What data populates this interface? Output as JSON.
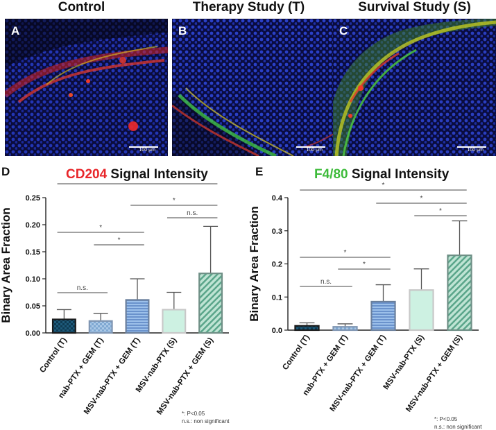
{
  "micrographs": [
    {
      "letter": "A",
      "title": "Control",
      "scale": "100 μm"
    },
    {
      "letter": "B",
      "title": "Therapy Study (T)",
      "scale": "100 μm"
    },
    {
      "letter": "C",
      "title": "Survival Study (S)",
      "scale": "100 μm"
    }
  ],
  "footnotes": {
    "sig": "*: P<0.05",
    "ns": "n.s.: non significant"
  },
  "chart_data": [
    {
      "panel": "D",
      "type": "bar",
      "title_marker": "CD204",
      "title_marker_color": "#e8262a",
      "title_rest": " Signal Intensity",
      "ylabel": "Binary Area Fraction",
      "ylim": [
        0,
        0.25
      ],
      "yticks": [
        "0.00",
        "0.05",
        "0.10",
        "0.15",
        "0.20",
        "0.25"
      ],
      "categories": [
        "Control (T)",
        "nab-PTX + GEM (T)",
        "MSV-nab-PTX + GEM (T)",
        "MSV-nab-PTX (S)",
        "MSV-nab-PTX + GEM (S)"
      ],
      "values": [
        0.025,
        0.022,
        0.061,
        0.043,
        0.11
      ],
      "errors": [
        0.018,
        0.014,
        0.039,
        0.032,
        0.087
      ],
      "comparisons": [
        {
          "from": 0,
          "to": 1,
          "label": "n.s."
        },
        {
          "from": 0,
          "to": 2,
          "label": "*"
        },
        {
          "from": 1,
          "to": 2,
          "label": "*"
        },
        {
          "from": 0,
          "to": 4,
          "label": "*"
        },
        {
          "from": 2,
          "to": 4,
          "label": "*"
        },
        {
          "from": 3,
          "to": 4,
          "label": "n.s."
        }
      ]
    },
    {
      "panel": "E",
      "type": "bar",
      "title_marker": "F4/80",
      "title_marker_color": "#3dbb3a",
      "title_rest": " Signal Intensity",
      "ylabel": "Binary Area Fraction",
      "ylim": [
        0,
        0.4
      ],
      "yticks": [
        "0.0",
        "0.1",
        "0.2",
        "0.3",
        "0.4"
      ],
      "categories": [
        "Control (T)",
        "nab-PTX + GEM (T)",
        "MSV-nab-PTX + GEM (T)",
        "MSV-nab-PTX (S)",
        "MSV-nab-PTX + GEM (S)"
      ],
      "values": [
        0.013,
        0.01,
        0.086,
        0.121,
        0.226
      ],
      "errors": [
        0.009,
        0.009,
        0.051,
        0.064,
        0.104
      ],
      "comparisons": [
        {
          "from": 0,
          "to": 1,
          "label": "n.s."
        },
        {
          "from": 0,
          "to": 2,
          "label": "*"
        },
        {
          "from": 1,
          "to": 2,
          "label": "*"
        },
        {
          "from": 0,
          "to": 4,
          "label": "*"
        },
        {
          "from": 2,
          "to": 4,
          "label": "*"
        },
        {
          "from": 3,
          "to": 4,
          "label": "*"
        }
      ]
    }
  ]
}
